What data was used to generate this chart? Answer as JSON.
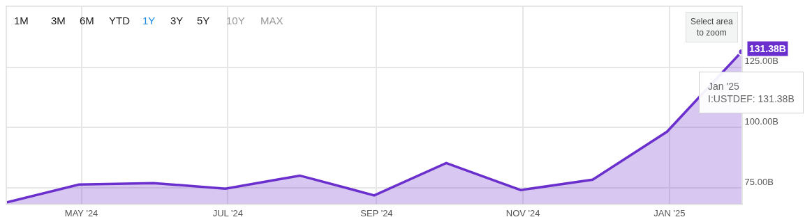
{
  "chart_data": {
    "type": "area",
    "x": [
      "2024-03-31",
      "2024-04-30",
      "2024-05-31",
      "2024-06-30",
      "2024-07-31",
      "2024-08-31",
      "2024-09-30",
      "2024-10-31",
      "2024-11-30",
      "2024-12-31",
      "2025-01-31"
    ],
    "series": [
      {
        "color": "#6a2fcc",
        "values": [
          69.0,
          76.4,
          77.0,
          74.7,
          80.1,
          71.9,
          85.3,
          74.1,
          78.4,
          98.3,
          131.38
        ]
      }
    ],
    "xlim": [
      "2024-03-31",
      "2025-01-31"
    ],
    "xticks": [
      {
        "value": "2024-05-01",
        "label": "MAY '24"
      },
      {
        "value": "2024-07-01",
        "label": "JUL '24"
      },
      {
        "value": "2024-09-01",
        "label": "SEP '24"
      },
      {
        "value": "2024-11-01",
        "label": "NOV '24"
      },
      {
        "value": "2025-01-01",
        "label": "JAN '25"
      }
    ],
    "ylim": [
      68.4,
      150
    ],
    "yticks": [
      {
        "value": 75,
        "label": "75.00B"
      },
      {
        "value": 100,
        "label": "100.00B"
      },
      {
        "value": 125,
        "label": "125.00B"
      }
    ],
    "grid": true,
    "legend": false,
    "annotations": [
      {
        "text": "131.38B",
        "x": "2025-01-31",
        "y": 131.38
      },
      {
        "text": "Jan '25\nI:USTDEF: 131.38B",
        "x": "2025-01-31",
        "y": 131.38
      },
      "Select area\nto zoom",
      "1M",
      "3M",
      "6M",
      "YTD",
      "1Y",
      "3Y",
      "5Y",
      "10Y",
      "MAX"
    ]
  }
}
